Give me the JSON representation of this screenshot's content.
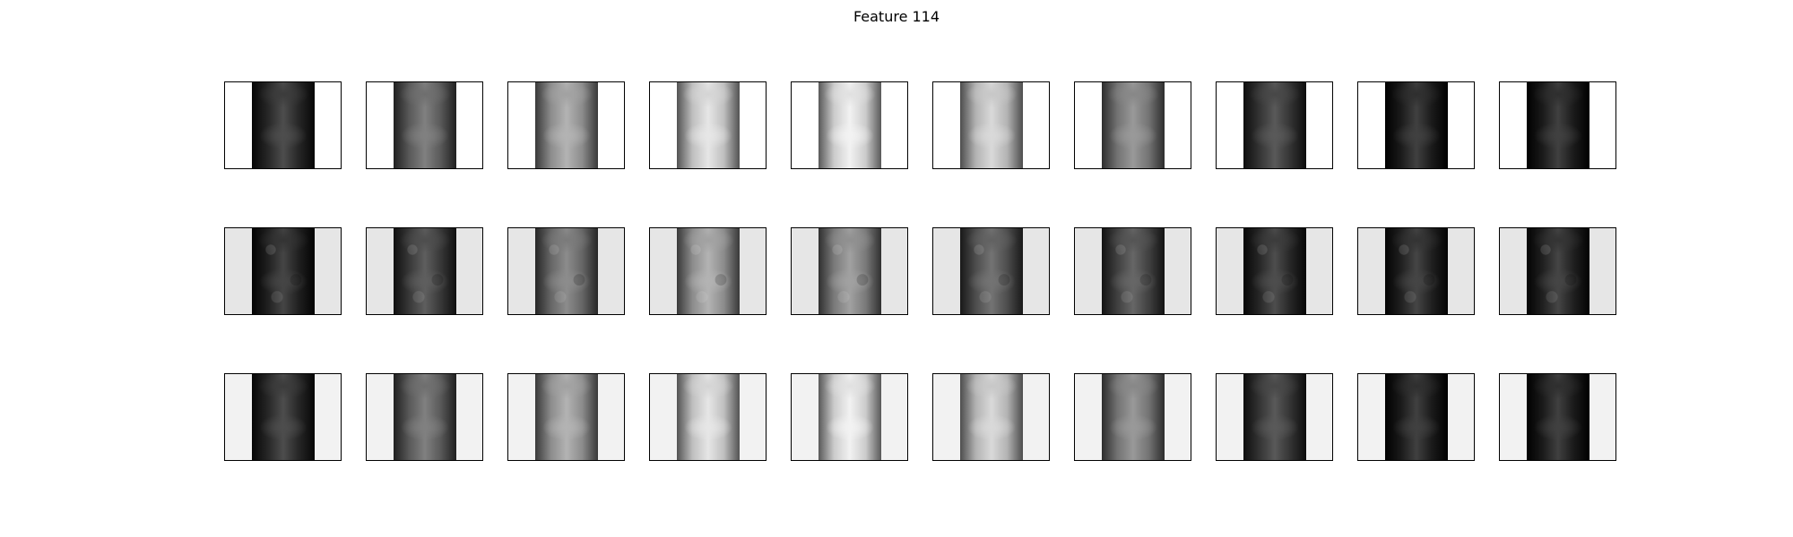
{
  "title": "Feature 114",
  "rows": 3,
  "columns": 10,
  "panel_intensity": [
    [
      0.15,
      0.35,
      0.55,
      0.75,
      0.8,
      0.7,
      0.45,
      0.2,
      0.1,
      0.1
    ],
    [
      0.12,
      0.22,
      0.4,
      0.55,
      0.48,
      0.3,
      0.25,
      0.15,
      0.12,
      0.12
    ],
    [
      0.15,
      0.35,
      0.55,
      0.75,
      0.8,
      0.7,
      0.45,
      0.2,
      0.1,
      0.1
    ]
  ],
  "row_background_colors": [
    "#ffffff",
    "#e6e6e6",
    "#f2f2f2"
  ]
}
